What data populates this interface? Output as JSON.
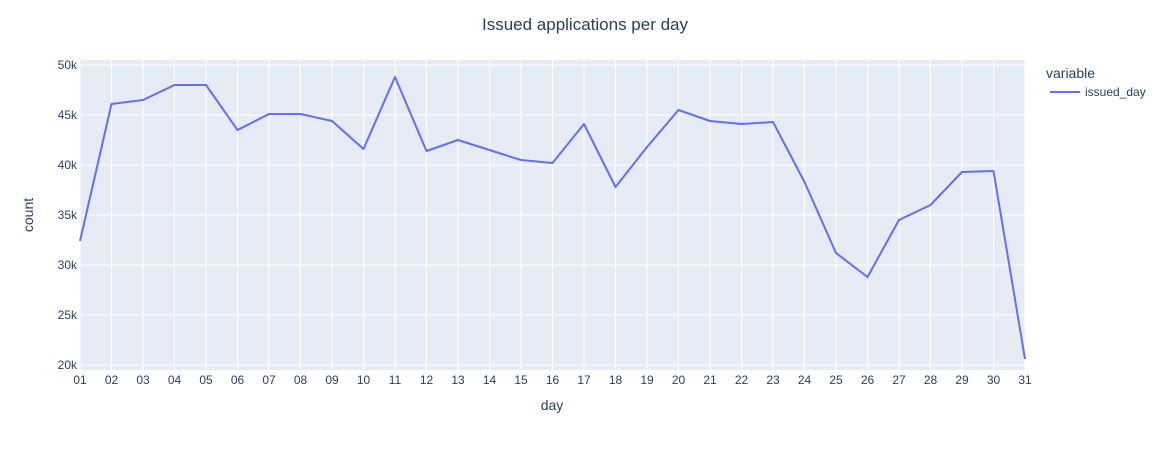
{
  "chart_data": {
    "type": "line",
    "title": "Issued applications per day",
    "xlabel": "day",
    "ylabel": "count",
    "legend": {
      "title": "variable",
      "placement": "top-right"
    },
    "x": [
      "01",
      "02",
      "03",
      "04",
      "05",
      "06",
      "07",
      "08",
      "09",
      "10",
      "11",
      "12",
      "13",
      "14",
      "15",
      "16",
      "17",
      "18",
      "19",
      "20",
      "21",
      "22",
      "23",
      "24",
      "25",
      "26",
      "27",
      "28",
      "29",
      "30",
      "31"
    ],
    "series": [
      {
        "name": "issued_day",
        "color": "#636efa",
        "values": [
          32400,
          46100,
          46500,
          48000,
          48000,
          43500,
          45100,
          45100,
          44400,
          41600,
          48800,
          41400,
          42500,
          41500,
          40500,
          40200,
          44100,
          37800,
          41800,
          45500,
          44400,
          44100,
          44300,
          38300,
          31200,
          28800,
          34500,
          36000,
          39300,
          39400,
          20600
        ]
      }
    ],
    "ylim": [
      19500,
      50500
    ],
    "yticks": [
      20000,
      25000,
      30000,
      35000,
      40000,
      45000,
      50000
    ],
    "ytick_labels": [
      "20k",
      "25k",
      "30k",
      "35k",
      "40k",
      "45k",
      "50k"
    ],
    "grid": true,
    "colors": {
      "plot_bg": "#e5ecf6",
      "grid": "#ffffff",
      "text": "#2a3f5f"
    }
  }
}
